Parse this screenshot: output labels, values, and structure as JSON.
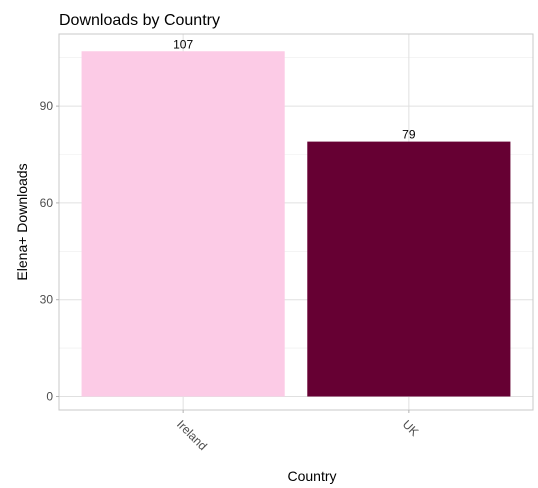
{
  "chart_data": {
    "type": "bar",
    "title": "Downloads by Country",
    "xlabel": "Country",
    "ylabel": "Elena+ Downloads",
    "categories": [
      "Ireland",
      "UK"
    ],
    "values": [
      107,
      79
    ],
    "data_labels": [
      "107",
      "79"
    ],
    "bar_colors": [
      "#fccbe6",
      "#660033"
    ],
    "ylim": [
      0,
      112.35
    ],
    "yticks": [
      0,
      30,
      60,
      90
    ],
    "ytick_labels": [
      "0",
      "30",
      "60",
      "90"
    ],
    "grid": true,
    "legend": "none",
    "xtick_rotation": "45 degrees"
  }
}
